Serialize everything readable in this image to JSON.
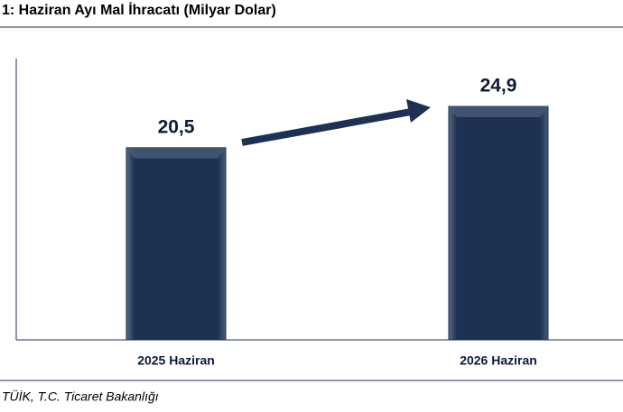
{
  "chart_data": {
    "type": "bar",
    "title": "1: Haziran Ayı Mal İhracatı (Milyar Dolar)",
    "categories": [
      "2025 Haziran",
      "2026 Haziran"
    ],
    "values": [
      20.5,
      24.9
    ],
    "value_labels": [
      "20,5",
      "24,9"
    ],
    "color": "#1f3152",
    "ylim": [
      0,
      30
    ],
    "source": "TÜİK, T.C. Ticaret Bakanlığı"
  }
}
